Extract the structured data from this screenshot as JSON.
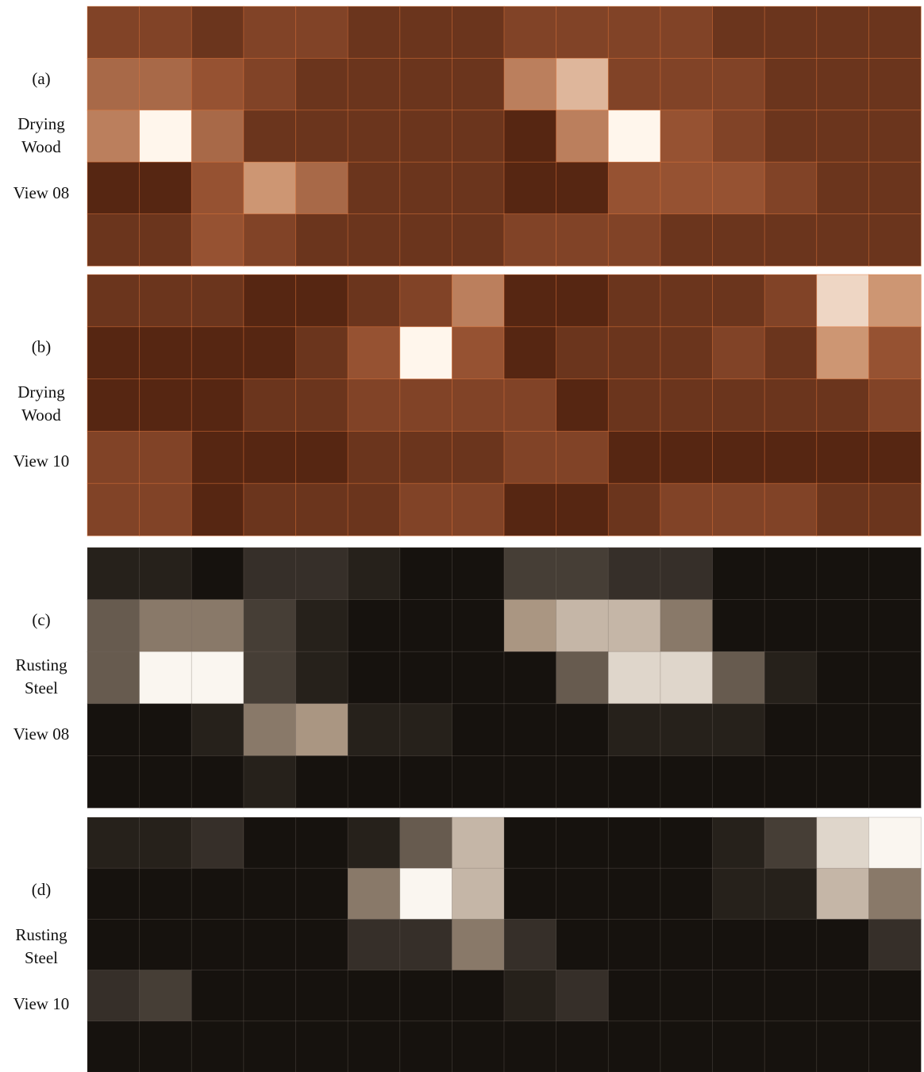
{
  "panels": [
    {
      "tag": "(a)",
      "lines": [
        "Drying",
        "Wood"
      ],
      "view": "View 08"
    },
    {
      "tag": "(b)",
      "lines": [
        "Drying",
        "Wood"
      ],
      "view": "View 10"
    },
    {
      "tag": "(c)",
      "lines": [
        "Rusting",
        "Steel"
      ],
      "view": "View 08"
    },
    {
      "tag": "(d)",
      "lines": [
        "Rusting",
        "Steel"
      ],
      "view": "View 10"
    }
  ]
}
